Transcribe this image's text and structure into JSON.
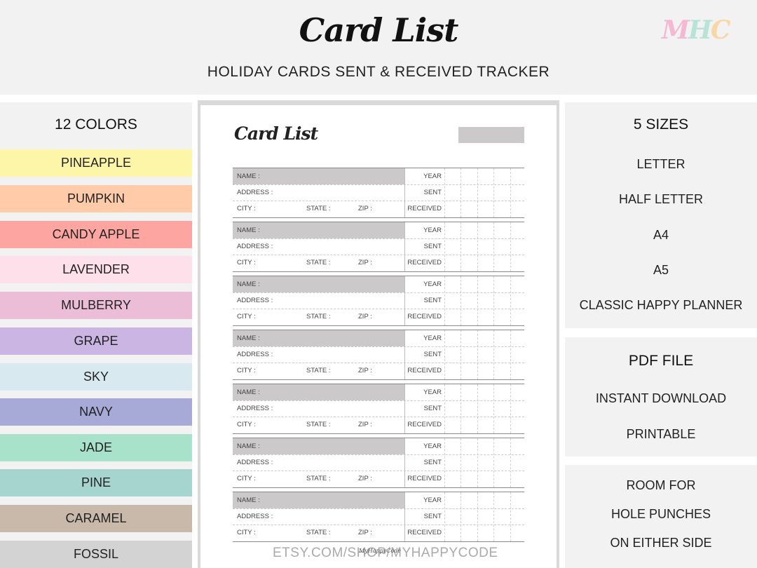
{
  "header": {
    "title": "Card List",
    "subtitle": "HOLIDAY CARDS SENT & RECEIVED TRACKER",
    "logo_text": "MHC"
  },
  "colors_panel": {
    "heading": "12 COLORS",
    "swatches": [
      {
        "label": "PINEAPPLE",
        "color": "#fdf5a8"
      },
      {
        "label": "PUMPKIN",
        "color": "#ffcba8"
      },
      {
        "label": "CANDY APPLE",
        "color": "#fda5a0"
      },
      {
        "label": "LAVENDER",
        "color": "#fde0ea"
      },
      {
        "label": "MULBERRY",
        "color": "#ebbdd6"
      },
      {
        "label": "GRAPE",
        "color": "#cbb5e2"
      },
      {
        "label": "SKY",
        "color": "#d8eaf0"
      },
      {
        "label": "NAVY",
        "color": "#a7a9d6"
      },
      {
        "label": "JADE",
        "color": "#a8e2ca"
      },
      {
        "label": "PINE",
        "color": "#a6d5cf"
      },
      {
        "label": "CARAMEL",
        "color": "#c9b9ab"
      },
      {
        "label": "FOSSIL",
        "color": "#d3d3d3"
      }
    ]
  },
  "document": {
    "title": "Card List",
    "labels": {
      "name": "NAME :",
      "address": "ADDRESS :",
      "city": "CITY :",
      "state": "STATE :",
      "zip": "ZIP :",
      "year": "YEAR",
      "sent": "SENT",
      "received": "RECEIVED"
    },
    "signature": "MyHappyCode",
    "url": "ETSY.COM/SHOP/MYHAPPYCODE"
  },
  "sizes_panel": {
    "heading": "5 SIZES",
    "items": [
      "LETTER",
      "HALF LETTER",
      "A4",
      "A5",
      "CLASSIC HAPPY PLANNER"
    ]
  },
  "file_panel": {
    "heading": "PDF FILE",
    "items": [
      "INSTANT DOWNLOAD",
      "PRINTABLE"
    ]
  },
  "holes_panel": {
    "lines": [
      "ROOM FOR",
      "HOLE PUNCHES",
      "ON EITHER SIDE"
    ]
  }
}
